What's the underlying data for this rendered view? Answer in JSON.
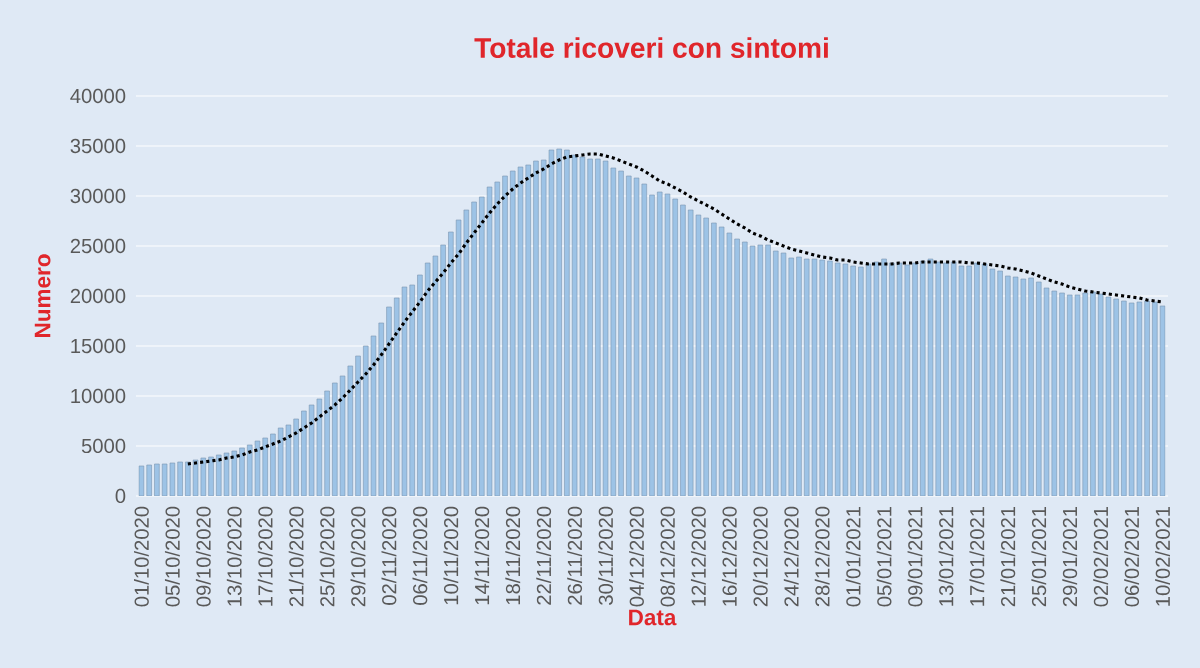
{
  "chart_data": {
    "type": "bar",
    "title": "Totale ricoveri con sintomi",
    "xlabel": "Data",
    "ylabel": "Numero",
    "categories": [
      "01/10/2020",
      null,
      null,
      null,
      "05/10/2020",
      null,
      null,
      null,
      "09/10/2020",
      null,
      null,
      null,
      "13/10/2020",
      null,
      null,
      null,
      "17/10/2020",
      null,
      null,
      null,
      "21/10/2020",
      null,
      null,
      null,
      "25/10/2020",
      null,
      null,
      null,
      "29/10/2020",
      null,
      null,
      null,
      "02/11/2020",
      null,
      null,
      null,
      "06/11/2020",
      null,
      null,
      null,
      "10/11/2020",
      null,
      null,
      null,
      "14/11/2020",
      null,
      null,
      null,
      "18/11/2020",
      null,
      null,
      null,
      "22/11/2020",
      null,
      null,
      null,
      "26/11/2020",
      null,
      null,
      null,
      "30/11/2020",
      null,
      null,
      null,
      "04/12/2020",
      null,
      null,
      null,
      "08/12/2020",
      null,
      null,
      null,
      "12/12/2020",
      null,
      null,
      null,
      "16/12/2020",
      null,
      null,
      null,
      "20/12/2020",
      null,
      null,
      null,
      "24/12/2020",
      null,
      null,
      null,
      "28/12/2020",
      null,
      null,
      null,
      "01/01/2021",
      null,
      null,
      null,
      "05/01/2021",
      null,
      null,
      null,
      "09/01/2021",
      null,
      null,
      null,
      "13/01/2021",
      null,
      null,
      null,
      "17/01/2021",
      null,
      null,
      null,
      "21/01/2021",
      null,
      null,
      null,
      "25/01/2021",
      null,
      null,
      null,
      "29/01/2021",
      null,
      null,
      null,
      "02/02/2021",
      null,
      null,
      null,
      "06/02/2021",
      null,
      null,
      null,
      "10/02/2021"
    ],
    "series": [
      {
        "color": "#9dc3e6",
        "values": [
          3000,
          3100,
          3200,
          3200,
          3300,
          3400,
          3400,
          3600,
          3800,
          3900,
          4100,
          4300,
          4500,
          4800,
          5100,
          5500,
          5800,
          6200,
          6800,
          7100,
          7700,
          8500,
          9100,
          9700,
          10500,
          11300,
          12000,
          13000,
          14000,
          15000,
          16000,
          17300,
          18900,
          19800,
          20900,
          21100,
          22100,
          23300,
          24000,
          25100,
          26400,
          27600,
          28600,
          29400,
          29900,
          30900,
          31400,
          32000,
          32500,
          32900,
          33100,
          33500,
          33600,
          34600,
          34700,
          34600,
          34100,
          33900,
          33700,
          33700,
          33500,
          32800,
          32500,
          32000,
          31800,
          31200,
          30100,
          30400,
          30200,
          29700,
          29100,
          28600,
          28100,
          27800,
          27300,
          26900,
          26300,
          25700,
          25400,
          25000,
          25100,
          25100,
          24500,
          24300,
          23800,
          23900,
          23700,
          23700,
          23600,
          23500,
          23300,
          23200,
          23000,
          22900,
          23200,
          23400,
          23700,
          23300,
          23300,
          23100,
          23300,
          23500,
          23700,
          23400,
          23300,
          23400,
          23000,
          23000,
          23300,
          23200,
          22700,
          22500,
          22000,
          21900,
          21700,
          21800,
          21400,
          20800,
          20500,
          20300,
          20100,
          20100,
          20300,
          20400,
          20200,
          19900,
          19700,
          19500,
          19300,
          19400,
          19500,
          19400,
          19000
        ]
      },
      {
        "type": "line",
        "color": "#000000",
        "line_style": "dotted",
        "marker": "none",
        "values": [
          null,
          null,
          null,
          null,
          null,
          null,
          3200,
          3300,
          3400,
          3500,
          3600,
          3800,
          3900,
          4100,
          4400,
          4600,
          4900,
          5200,
          5500,
          5900,
          6300,
          6800,
          7300,
          7900,
          8500,
          9100,
          9800,
          10600,
          11400,
          12200,
          13100,
          14100,
          15200,
          16300,
          17400,
          18400,
          19400,
          20500,
          21400,
          22300,
          23300,
          24200,
          25300,
          26300,
          27300,
          28300,
          29200,
          30000,
          30700,
          31300,
          31800,
          32300,
          32700,
          33200,
          33600,
          33900,
          34000,
          34100,
          34200,
          34200,
          34000,
          33800,
          33500,
          33200,
          32900,
          32500,
          32000,
          31500,
          31200,
          30800,
          30400,
          29900,
          29500,
          29100,
          28700,
          28200,
          27700,
          27200,
          26800,
          26300,
          26000,
          25600,
          25300,
          25000,
          24700,
          24500,
          24300,
          24100,
          23900,
          23800,
          23600,
          23600,
          23400,
          23300,
          23200,
          23200,
          23200,
          23200,
          23300,
          23300,
          23300,
          23400,
          23400,
          23400,
          23400,
          23400,
          23400,
          23300,
          23300,
          23200,
          23100,
          23000,
          22800,
          22700,
          22500,
          22300,
          22000,
          21700,
          21400,
          21200,
          20900,
          20700,
          20500,
          20400,
          20300,
          20200,
          20100,
          20000,
          19900,
          19800,
          19600,
          19500,
          19400
        ]
      }
    ],
    "ylim": [
      0,
      40000
    ],
    "yticks": [
      0,
      5000,
      10000,
      15000,
      20000,
      25000,
      30000,
      35000,
      40000
    ],
    "grid": "y"
  }
}
